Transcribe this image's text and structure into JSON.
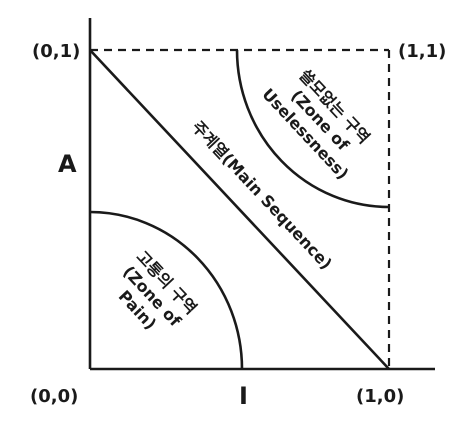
{
  "axes": {
    "x_label": "I",
    "y_label": "A"
  },
  "corners": {
    "origin": "(0,0)",
    "top_left": "(0,1)",
    "top_right": "(1,1)",
    "bottom_right": "(1,0)"
  },
  "main_sequence": {
    "label": "주계열(Main Sequence)"
  },
  "zone_of_pain": {
    "line1": "고통의 구역",
    "line2": "(Zone of",
    "line3": "Pain)"
  },
  "zone_of_uselessness": {
    "line1": "쓸모없는 구역",
    "line2": "(Zone of",
    "line3": "Uselessness)"
  }
}
